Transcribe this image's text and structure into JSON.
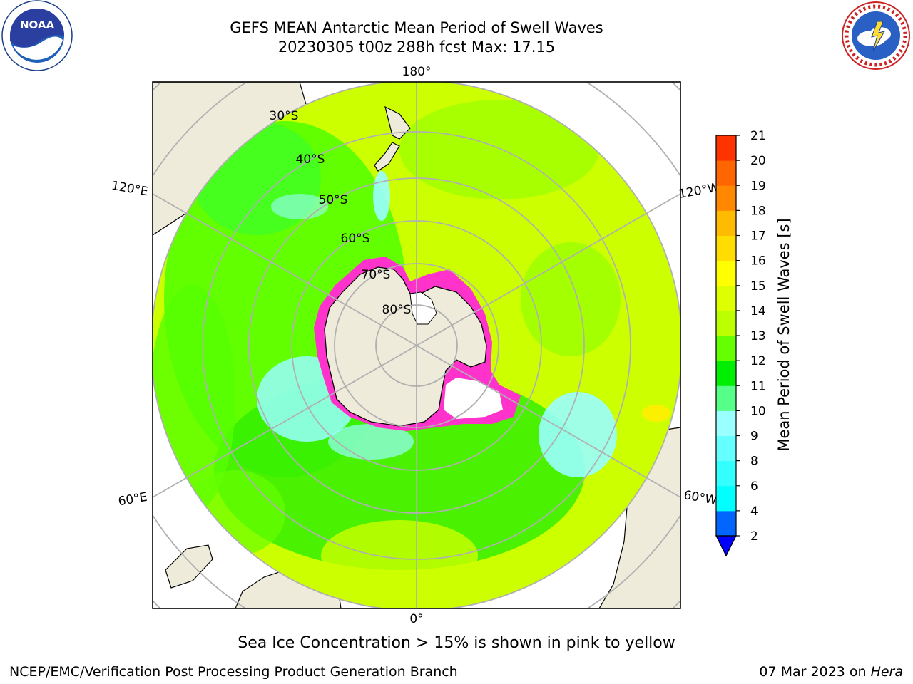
{
  "title": {
    "line1": "GEFS MEAN Antarctic Mean Period of Swell Waves",
    "line2": "20230305 t00z 288h fcst   Max: 17.15"
  },
  "logos": {
    "left": {
      "text": "NOAA",
      "icon": "noaa-logo-icon"
    },
    "right": {
      "icon": "national-weather-service-logo-icon"
    }
  },
  "map": {
    "projection": "south-polar-stereographic",
    "longitude_labels": {
      "top": "180°",
      "bottom": "0°",
      "left_upper": "120°E",
      "left_lower": "60°E",
      "right_upper": "120°W",
      "right_lower": "60°W"
    },
    "latitude_labels": [
      "30°S",
      "40°S",
      "50°S",
      "60°S",
      "70°S",
      "80°S"
    ],
    "colors": {
      "land": "#efebda",
      "ocean_dominant": "#ccff00",
      "ocean_green": "#55ff00",
      "ocean_cyan": "#99ffff",
      "sea_ice": "#ff33cc",
      "graticule": "#b0b0b0"
    }
  },
  "colorbar": {
    "label": "Mean Period of Swell Waves [s]",
    "ticks": [
      "2",
      "4",
      "6",
      "8",
      "9",
      "10",
      "11",
      "12",
      "13",
      "14",
      "15",
      "16",
      "17",
      "18",
      "19",
      "20",
      "21"
    ],
    "colors": [
      "#0066ff",
      "#00ffff",
      "#33ffff",
      "#66ffff",
      "#99ffff",
      "#55ff88",
      "#00ee00",
      "#66ff00",
      "#bbff00",
      "#ddff00",
      "#ffff00",
      "#ffdd00",
      "#ffbb00",
      "#ff8800",
      "#ff6600",
      "#ff3300",
      "#ff0000"
    ],
    "under_color": "#0000ff"
  },
  "note": "Sea Ice Concentration > 15% is shown in pink to yellow",
  "footer": {
    "left": "NCEP/EMC/Verification Post Processing Product Generation Branch",
    "right_date": "07 Mar 2023 on ",
    "right_host": "Hera"
  }
}
